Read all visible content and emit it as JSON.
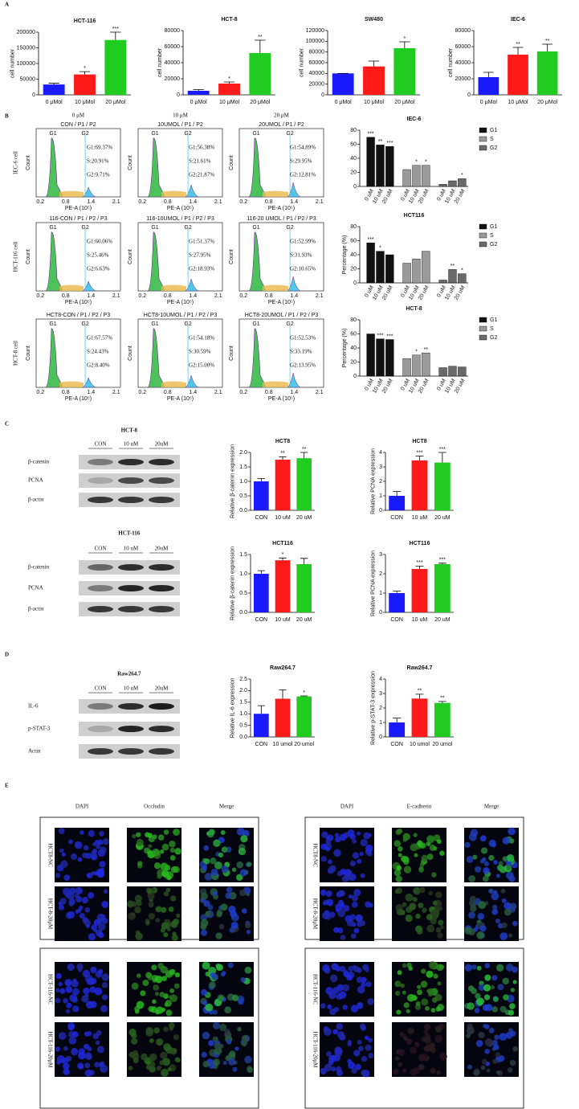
{
  "figure_labels": [
    "A",
    "B",
    "C",
    "D",
    "E"
  ],
  "chart_data": [
    {
      "type": "bar",
      "title": "HCT-116",
      "y_label": "cell number",
      "categories": [
        "0 μMol",
        "10 μMol",
        "20 μMol"
      ],
      "values": [
        33000,
        65000,
        175000
      ],
      "errors": [
        4000,
        9000,
        25000
      ],
      "annotations": [
        null,
        "*",
        "***"
      ],
      "colors": [
        "#1a1aff",
        "#ff1a1a",
        "#1fcc1f"
      ],
      "ylim": [
        0,
        200000
      ],
      "yticks": [
        0,
        50000,
        100000,
        150000,
        200000
      ]
    },
    {
      "type": "bar",
      "title": "HCT-8",
      "y_label": "cell number",
      "categories": [
        "0 μMol",
        "10 μMol",
        "20 μMol"
      ],
      "values": [
        5000,
        14000,
        52000
      ],
      "errors": [
        1500,
        2000,
        16000
      ],
      "annotations": [
        null,
        "*",
        "**"
      ],
      "colors": [
        "#1a1aff",
        "#ff1a1a",
        "#1fcc1f"
      ],
      "ylim": [
        0,
        80000
      ],
      "yticks": [
        0,
        20000,
        40000,
        60000,
        80000
      ]
    },
    {
      "type": "bar",
      "title": "SW480",
      "y_label": "cell number",
      "categories": [
        "0 μMol",
        "10 μMol",
        "20 μMol"
      ],
      "values": [
        40000,
        53000,
        87000
      ],
      "errors": [
        0,
        10000,
        12000
      ],
      "annotations": [
        null,
        null,
        "*"
      ],
      "colors": [
        "#1a1aff",
        "#ff1a1a",
        "#1fcc1f"
      ],
      "ylim": [
        0,
        120000
      ],
      "yticks": [
        0,
        20000,
        40000,
        60000,
        80000,
        100000,
        120000
      ]
    },
    {
      "type": "bar",
      "title": "IEC-6",
      "y_label": "cell number",
      "categories": [
        "0 μMol",
        "10 μMol",
        "20 μMol"
      ],
      "values": [
        22000,
        50000,
        54000
      ],
      "errors": [
        6000,
        9000,
        9000
      ],
      "annotations": [
        null,
        "**",
        "**"
      ],
      "colors": [
        "#1a1aff",
        "#ff1a1a",
        "#1fcc1f"
      ],
      "ylim": [
        0,
        80000
      ],
      "yticks": [
        0,
        20000,
        40000,
        60000,
        80000
      ]
    },
    {
      "type": "grouped",
      "title": "IEC-6",
      "categories": [
        "0 uM",
        "10 uM",
        "20 uM"
      ],
      "series": [
        {
          "name": "G1",
          "color": "#111111",
          "values": [
            70,
            59,
            57
          ],
          "annotations": [
            "***",
            "**",
            "***"
          ]
        },
        {
          "name": "S",
          "color": "#9a9a9a",
          "values": [
            24,
            30,
            30
          ],
          "annotations": [
            null,
            "*",
            "*"
          ]
        },
        {
          "name": "G2",
          "color": "#6a6a6a",
          "values": [
            3,
            8,
            11
          ],
          "annotations": [
            null,
            null,
            "*"
          ]
        }
      ],
      "ylim": [
        0,
        80
      ],
      "yticks": [
        0,
        20,
        40,
        60,
        80
      ]
    },
    {
      "type": "grouped",
      "title": "HCT116",
      "y_label": "Percentage (%)",
      "categories": [
        "0 uM",
        "10 uM",
        "20 uM"
      ],
      "series": [
        {
          "name": "G1",
          "color": "#111111",
          "values": [
            57,
            45,
            40
          ],
          "annotations": [
            "***",
            "*",
            null
          ]
        },
        {
          "name": "S",
          "color": "#9a9a9a",
          "values": [
            28,
            34,
            45
          ],
          "annotations": [
            null,
            null,
            null
          ]
        },
        {
          "name": "G2",
          "color": "#6a6a6a",
          "values": [
            4,
            19,
            13
          ],
          "annotations": [
            null,
            "**",
            "*"
          ]
        }
      ],
      "ylim": [
        0,
        80
      ],
      "yticks": [
        0,
        20,
        40,
        60,
        80
      ]
    },
    {
      "type": "grouped",
      "title": "HCT-8",
      "y_label": "Percentage (%)",
      "categories": [
        "0 uM",
        "10 uM",
        "20 uM"
      ],
      "series": [
        {
          "name": "G1",
          "color": "#111111",
          "values": [
            60,
            53,
            52
          ],
          "annotations": [
            null,
            "***",
            "***"
          ]
        },
        {
          "name": "S",
          "color": "#9a9a9a",
          "values": [
            25,
            30,
            33
          ],
          "annotations": [
            null,
            "*",
            "**"
          ]
        },
        {
          "name": "G2",
          "color": "#6a6a6a",
          "values": [
            12,
            14,
            13
          ],
          "annotations": [
            null,
            null,
            null
          ]
        }
      ],
      "ylim": [
        0,
        80
      ],
      "yticks": [
        0,
        20,
        40,
        60,
        80
      ]
    },
    {
      "type": "bar",
      "title": "HCT8",
      "y_label": "Relative β-catenin expression",
      "categories": [
        "CON",
        "10 uM",
        "20 uM"
      ],
      "values": [
        1.0,
        1.75,
        1.8
      ],
      "errors": [
        0.1,
        0.1,
        0.2
      ],
      "annotations": [
        null,
        "**",
        "**"
      ],
      "colors": [
        "#1a1aff",
        "#ff1a1a",
        "#1fcc1f"
      ],
      "ylim": [
        0,
        2
      ],
      "yticks": [
        {
          "value": 0,
          "label": "0.0"
        },
        0.5,
        {
          "value": 1,
          "label": "1.0"
        },
        1.5,
        {
          "value": 2,
          "label": "2.0"
        }
      ]
    },
    {
      "type": "bar",
      "title": "HCT8",
      "y_label": "Relative PCNA expression",
      "categories": [
        "CON",
        "10 uM",
        "20 uM"
      ],
      "values": [
        1.0,
        3.45,
        3.3
      ],
      "errors": [
        0.3,
        0.3,
        0.7
      ],
      "annotations": [
        null,
        "***",
        "***"
      ],
      "colors": [
        "#1a1aff",
        "#ff1a1a",
        "#1fcc1f"
      ],
      "ylim": [
        0,
        4
      ],
      "yticks": [
        0,
        1,
        2,
        3,
        4
      ]
    },
    {
      "type": "bar",
      "title": "HCT116",
      "y_label": "Relative β-catenin expression",
      "categories": [
        "CON",
        "10 uM",
        "20 uM"
      ],
      "values": [
        1.0,
        1.35,
        1.25
      ],
      "errors": [
        0.08,
        0.06,
        0.15
      ],
      "annotations": [
        null,
        "*",
        null
      ],
      "colors": [
        "#1a1aff",
        "#ff1a1a",
        "#1fcc1f"
      ],
      "ylim": [
        0,
        1.5
      ],
      "yticks": [
        {
          "value": 0,
          "label": "0.0"
        },
        0.5,
        {
          "value": 1,
          "label": "1.0"
        },
        1.5
      ]
    },
    {
      "type": "bar",
      "title": "HCT116",
      "y_label": "Relative PCNA expression",
      "categories": [
        "CON",
        "10 uM",
        "20 uM"
      ],
      "values": [
        1.0,
        2.25,
        2.5
      ],
      "errors": [
        0.1,
        0.15,
        0.05
      ],
      "annotations": [
        null,
        "***",
        "***"
      ],
      "colors": [
        "#1a1aff",
        "#ff1a1a",
        "#1fcc1f"
      ],
      "ylim": [
        0,
        3
      ],
      "yticks": [
        0,
        1,
        2,
        3
      ]
    },
    {
      "type": "bar",
      "title": "Raw264.7",
      "y_label": "Relative IL-6 expression",
      "categories": [
        "CON",
        "10 umol",
        "20 umol"
      ],
      "values": [
        1.0,
        1.65,
        1.75
      ],
      "errors": [
        0.35,
        0.38,
        0.02
      ],
      "annotations": [
        null,
        null,
        "*"
      ],
      "colors": [
        "#1a1aff",
        "#ff1a1a",
        "#1fcc1f"
      ],
      "ylim": [
        0,
        2.5
      ],
      "yticks": [
        {
          "value": 0,
          "label": "0.0"
        },
        0.5,
        {
          "value": 1,
          "label": "1.0"
        },
        1.5,
        {
          "value": 2,
          "label": "2.0"
        },
        2.5
      ]
    },
    {
      "type": "bar",
      "title": "Raw264.7",
      "y_label": "Relative p-STAT-3 expression",
      "categories": [
        "CON",
        "10 umol",
        "20 umol"
      ],
      "values": [
        1.0,
        2.65,
        2.35
      ],
      "errors": [
        0.3,
        0.3,
        0.1
      ],
      "annotations": [
        null,
        "**",
        "**"
      ],
      "colors": [
        "#1a1aff",
        "#ff1a1a",
        "#1fcc1f"
      ],
      "ylim": [
        0,
        4
      ],
      "yticks": [
        0,
        1,
        2,
        3,
        4
      ]
    }
  ],
  "flow": {
    "columns": [
      "0 μM",
      "10 μM",
      "20 μM"
    ],
    "rows": [
      "IEC-6 cell",
      "HCT-116 cell",
      "HCT-8 cell"
    ],
    "x_label": "PE-A (10⁵)",
    "y_label": "Count",
    "x_ticks": [
      "0.2",
      "0.8",
      "1.4",
      "2.1"
    ],
    "peaks": [
      "G1",
      "G2"
    ],
    "panels": [
      {
        "title": "CON / P1 / P2",
        "stats": [
          "G1:69.37%",
          "S:20.91%",
          "G2:9.71%"
        ]
      },
      {
        "title": "10UMOL / P1 / P2",
        "stats": [
          "G1:56.38%",
          "S:21.61%",
          "G2:21.87%"
        ]
      },
      {
        "title": "20UMOL / P1 / P2",
        "stats": [
          "G1:54.89%",
          "S:29.95%",
          "G2:12.81%"
        ]
      },
      {
        "title": "116-CON / P1 / P2 / P3",
        "stats": [
          "G1:60.06%",
          "S:25.46%",
          "G2:6.63%"
        ]
      },
      {
        "title": "116-10UMOL / P1 / P2 / P3",
        "stats": [
          "G1:51.37%",
          "S:27.95%",
          "G2:18.93%"
        ]
      },
      {
        "title": "116-20 UMOL / P1 / P2 / P3",
        "stats": [
          "G1:52.99%",
          "S:31.93%",
          "G2:10.65%"
        ]
      },
      {
        "title": "HCT8-CON / P1 / P2 / P3",
        "stats": [
          "G1:67.57%",
          "S:24.43%",
          "G2:8.40%"
        ]
      },
      {
        "title": "HCT8-10UMOL / P1 / P2 / P3",
        "stats": [
          "G1:54.18%",
          "S:30.59%",
          "G2:15.00%"
        ]
      },
      {
        "title": "HCT8-20UMOL / P1 / P2 / P3",
        "stats": [
          "G1:52.53%",
          "S:33.19%",
          "G2:13.95%"
        ]
      }
    ]
  },
  "blots": [
    {
      "title": "HCT-8",
      "lanes": [
        "CON",
        "10 uM",
        "20uM"
      ],
      "rows": [
        "β-catenin",
        "PCNA",
        "β-actin"
      ]
    },
    {
      "title": "HCT-116",
      "lanes": [
        "CON",
        "10 uM",
        "20uM"
      ],
      "rows": [
        "β-catenin",
        "PCNA",
        "β-actin"
      ]
    },
    {
      "title": "Raw264.7",
      "lanes": [
        "CON",
        "10 uM",
        "20uM"
      ],
      "rows": [
        "IL-6",
        "p-STAT-3",
        "Actin"
      ]
    }
  ],
  "microscopy": [
    {
      "columns": [
        "DAPI",
        "Occludin",
        "Merge"
      ],
      "rows": [
        "HCT8-NC",
        "HCT-8-20μM",
        "HCT-116-NC",
        "HCT-116-20μM"
      ]
    },
    {
      "columns": [
        "DAPI",
        "E-cadherin",
        "Merge"
      ],
      "rows": [
        "HCT8-NC",
        "HCT-8-20μM",
        "HCT-116-NC",
        "HCT-116-20μM"
      ]
    }
  ]
}
